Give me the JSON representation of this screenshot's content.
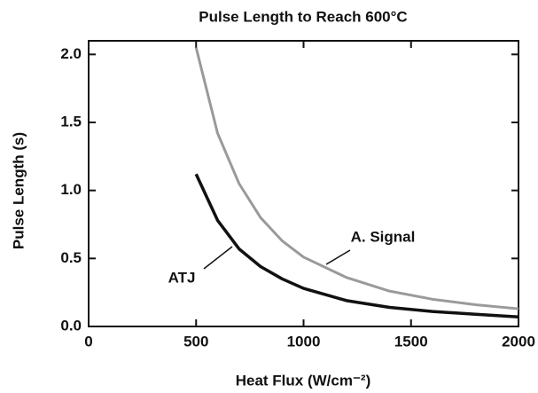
{
  "chart_data": {
    "type": "line",
    "title": "Pulse Length to Reach 600°C",
    "x_label": "Heat Flux (W/cm⁻²)",
    "y_label": "Pulse Length (s)",
    "x": [
      500,
      600,
      700,
      800,
      900,
      1000,
      1200,
      1400,
      1600,
      1800,
      2000
    ],
    "series": [
      {
        "name": "A. Signal",
        "color": "#9a9a9a",
        "values": [
          2.05,
          1.42,
          1.05,
          0.8,
          0.63,
          0.51,
          0.36,
          0.26,
          0.2,
          0.16,
          0.13
        ]
      },
      {
        "name": "ATJ",
        "color": "#111111",
        "values": [
          1.12,
          0.78,
          0.57,
          0.44,
          0.35,
          0.28,
          0.19,
          0.14,
          0.11,
          0.09,
          0.07
        ]
      }
    ],
    "xlim": [
      0,
      2000
    ],
    "xticks": [
      0,
      500,
      1000,
      1500,
      2000
    ],
    "ylim": [
      0,
      2.1
    ],
    "yticks": [
      {
        "value": 0,
        "label": "0.0"
      },
      {
        "value": 0.5,
        "label": "0.5"
      },
      {
        "value": 1,
        "label": "1.0"
      },
      {
        "value": 1.5,
        "label": "1.5"
      },
      {
        "value": 2,
        "label": "2.0"
      }
    ]
  }
}
